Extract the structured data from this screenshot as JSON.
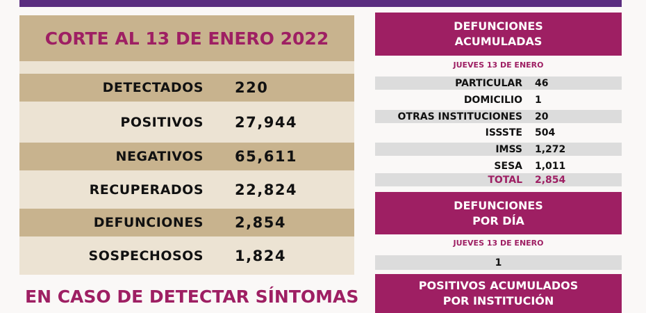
{
  "colors": {
    "magenta": "#9e1f63",
    "tan": "#c8b38e",
    "light_tan": "#ece3d3",
    "purple": "#5a2d7f",
    "gray": "#dcdcdc"
  },
  "summary": {
    "title": "CORTE AL 13 DE ENERO 2022",
    "rows": [
      {
        "label": "DETECTADOS",
        "value": "220"
      },
      {
        "label": "POSITIVOS",
        "value": "27,944"
      },
      {
        "label": "NEGATIVOS",
        "value": "65,611"
      },
      {
        "label": "RECUPERADOS",
        "value": "22,824"
      },
      {
        "label": "DEFUNCIONES",
        "value": "2,854"
      },
      {
        "label": "SOSPECHOSOS",
        "value": "1,824"
      }
    ]
  },
  "defunciones_acumuladas": {
    "title_line1": "DEFUNCIONES",
    "title_line2": "ACUMULADAS",
    "date": "JUEVES 13 DE ENERO",
    "rows": [
      {
        "label": "PARTICULAR",
        "value": "46"
      },
      {
        "label": "DOMICILIO",
        "value": "1"
      },
      {
        "label": "OTRAS INSTITUCIONES",
        "value": "20"
      },
      {
        "label": "ISSSTE",
        "value": "504"
      },
      {
        "label": "IMSS",
        "value": "1,272"
      },
      {
        "label": "SESA",
        "value": "1,011"
      },
      {
        "label": "TOTAL",
        "value": "2,854"
      }
    ]
  },
  "defunciones_dia": {
    "title_line1": "DEFUNCIONES",
    "title_line2": "POR DÍA",
    "date": "JUEVES 13 DE ENERO",
    "value": "1"
  },
  "positivos_institucion": {
    "title_line1": "POSITIVOS ACUMULADOS",
    "title_line2": "POR INSTITUCIÓN"
  },
  "footer": "EN CASO DE DETECTAR SÍNTOMAS"
}
